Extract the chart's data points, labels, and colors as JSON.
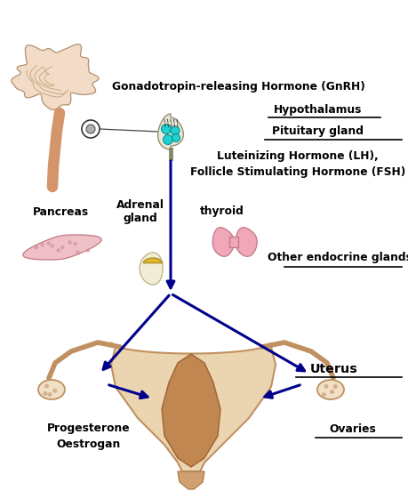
{
  "bg_color": "#ffffff",
  "arrow_color": "#00008B",
  "text_color": "#000000",
  "title_gnrh": "Gonadotropin-releasing Hormone (GnRH)",
  "label_hypothalamus": "Hypothalamus",
  "label_pituitary": "Pituitary gland",
  "label_lh_fsh": "Luteinizing Hormone (LH),\nFollicle Stimulating Hormone (FSH)",
  "label_pancreas": "Pancreas",
  "label_adrenal": "Adrenal\ngland",
  "label_thyroid": "thyroid",
  "label_other": "Other endocrine glands",
  "label_uterus": "Uterus",
  "label_ovaries": "Ovaries",
  "label_prog": "Progesterone\nOestrogan",
  "figsize": [
    4.6,
    5.52
  ],
  "dpi": 100
}
